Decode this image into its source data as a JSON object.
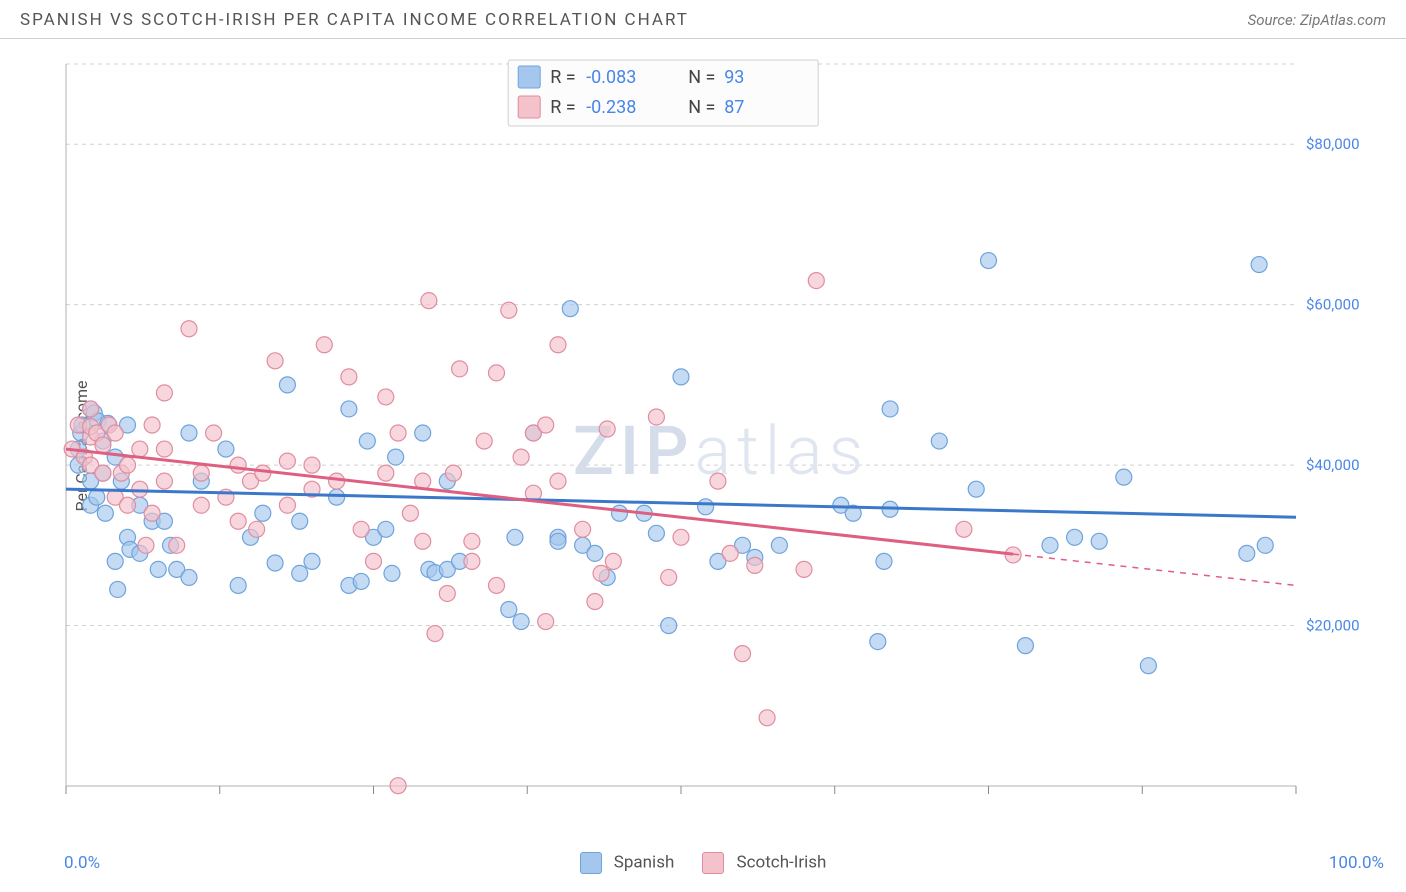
{
  "title": "SPANISH VS SCOTCH-IRISH PER CAPITA INCOME CORRELATION CHART",
  "source": "Source: ZipAtlas.com",
  "watermark": {
    "part1": "ZIP",
    "part2": "atlas"
  },
  "chart": {
    "type": "scatter",
    "ylabel": "Per Capita Income",
    "xlim": [
      0,
      100
    ],
    "ylim": [
      0,
      90000
    ],
    "y_gridlines": [
      20000,
      40000,
      60000,
      80000
    ],
    "y_tick_labels": [
      "$20,000",
      "$40,000",
      "$60,000",
      "$80,000"
    ],
    "x_ticks_minor": [
      0,
      12.5,
      25,
      37.5,
      50,
      62.5,
      75,
      87.5,
      100
    ],
    "x_tick_labels": {
      "left": "0.0%",
      "right": "100.0%"
    },
    "background_color": "#ffffff",
    "grid_color": "#d0d0d0",
    "series": [
      {
        "name": "Spanish",
        "color_fill": "#a5c7ed",
        "color_stroke": "#6fa3dd",
        "r_value": "-0.083",
        "n_value": "93",
        "trend": {
          "x1": 0,
          "y1": 37000,
          "x2": 100,
          "y2": 33500,
          "color": "#3b78c9",
          "width": 3,
          "dash_from_x": null
        },
        "points": [
          [
            1,
            40000
          ],
          [
            1,
            42000
          ],
          [
            1.2,
            44000
          ],
          [
            1.3,
            45000
          ],
          [
            2,
            38000
          ],
          [
            2,
            35000
          ],
          [
            2,
            47000
          ],
          [
            2.3,
            46500
          ],
          [
            2.5,
            36000
          ],
          [
            2.6,
            45500
          ],
          [
            3,
            43000
          ],
          [
            3,
            39000
          ],
          [
            3.2,
            34000
          ],
          [
            3.4,
            45200
          ],
          [
            4,
            41000
          ],
          [
            4,
            28000
          ],
          [
            4.2,
            24500
          ],
          [
            4.5,
            38000
          ],
          [
            5,
            31000
          ],
          [
            5,
            45000
          ],
          [
            5.2,
            29500
          ],
          [
            6,
            29000
          ],
          [
            6,
            35000
          ],
          [
            7,
            33000
          ],
          [
            7.5,
            27000
          ],
          [
            8,
            33000
          ],
          [
            8.5,
            30000
          ],
          [
            9,
            27000
          ],
          [
            10,
            26000
          ],
          [
            10,
            44000
          ],
          [
            11,
            38000
          ],
          [
            13,
            42000
          ],
          [
            14,
            25000
          ],
          [
            15,
            31000
          ],
          [
            16,
            34000
          ],
          [
            17,
            27800
          ],
          [
            18,
            50000
          ],
          [
            19,
            33000
          ],
          [
            19,
            26500
          ],
          [
            20,
            28000
          ],
          [
            22,
            36000
          ],
          [
            23,
            25000
          ],
          [
            23,
            47000
          ],
          [
            24,
            25500
          ],
          [
            24.5,
            43000
          ],
          [
            25,
            31000
          ],
          [
            26,
            32000
          ],
          [
            26.5,
            26500
          ],
          [
            26.8,
            41000
          ],
          [
            29,
            44000
          ],
          [
            29.5,
            27000
          ],
          [
            30,
            26600
          ],
          [
            31,
            27000
          ],
          [
            31,
            38000
          ],
          [
            32,
            28000
          ],
          [
            36,
            22000
          ],
          [
            36.5,
            31000
          ],
          [
            37,
            20500
          ],
          [
            38,
            44000
          ],
          [
            40,
            31000
          ],
          [
            40,
            30500
          ],
          [
            41,
            59500
          ],
          [
            42,
            30000
          ],
          [
            43,
            29000
          ],
          [
            44,
            26000
          ],
          [
            45,
            34000
          ],
          [
            47,
            34000
          ],
          [
            48,
            31500
          ],
          [
            49,
            20000
          ],
          [
            50,
            51000
          ],
          [
            52,
            34800
          ],
          [
            53,
            28000
          ],
          [
            55,
            30000
          ],
          [
            56,
            28500
          ],
          [
            58,
            30000
          ],
          [
            63,
            35000
          ],
          [
            64,
            34000
          ],
          [
            66,
            18000
          ],
          [
            66.5,
            28000
          ],
          [
            67,
            47000
          ],
          [
            67,
            34500
          ],
          [
            71,
            43000
          ],
          [
            74,
            37000
          ],
          [
            75,
            65500
          ],
          [
            78,
            17500
          ],
          [
            80,
            30000
          ],
          [
            82,
            31000
          ],
          [
            84,
            30500
          ],
          [
            86,
            38500
          ],
          [
            88,
            15000
          ],
          [
            96,
            29000
          ],
          [
            97,
            65000
          ],
          [
            97.5,
            30000
          ]
        ]
      },
      {
        "name": "Scotch-Irish",
        "color_fill": "#f3c2cb",
        "color_stroke": "#e08da0",
        "r_value": "-0.238",
        "n_value": "87",
        "trend": {
          "x1": 0,
          "y1": 42000,
          "x2": 100,
          "y2": 25000,
          "color": "#de5f82",
          "width": 3,
          "dash_from_x": 77
        },
        "points": [
          [
            0.5,
            42000
          ],
          [
            1,
            45000
          ],
          [
            1.5,
            41000
          ],
          [
            2,
            40000
          ],
          [
            2,
            43500
          ],
          [
            2,
            44800
          ],
          [
            2,
            47000
          ],
          [
            2.5,
            44000
          ],
          [
            3,
            39000
          ],
          [
            3,
            42500
          ],
          [
            3.5,
            45000
          ],
          [
            4,
            44000
          ],
          [
            4,
            36000
          ],
          [
            4.5,
            39000
          ],
          [
            5,
            40000
          ],
          [
            5,
            35000
          ],
          [
            6,
            37000
          ],
          [
            6,
            42000
          ],
          [
            6.5,
            30000
          ],
          [
            7,
            34000
          ],
          [
            7,
            45000
          ],
          [
            8,
            38000
          ],
          [
            8,
            42000
          ],
          [
            8,
            49000
          ],
          [
            9,
            30000
          ],
          [
            10,
            57000
          ],
          [
            11,
            39000
          ],
          [
            11,
            35000
          ],
          [
            12,
            44000
          ],
          [
            13,
            36000
          ],
          [
            14,
            33000
          ],
          [
            14,
            40000
          ],
          [
            15,
            38000
          ],
          [
            15.5,
            32000
          ],
          [
            16,
            39000
          ],
          [
            17,
            53000
          ],
          [
            18,
            35000
          ],
          [
            18,
            40500
          ],
          [
            20,
            40000
          ],
          [
            20,
            37000
          ],
          [
            21,
            55000
          ],
          [
            22,
            38000
          ],
          [
            23,
            51000
          ],
          [
            24,
            32000
          ],
          [
            25,
            28000
          ],
          [
            26,
            39000
          ],
          [
            26,
            48500
          ],
          [
            27,
            39.5
          ],
          [
            27,
            44000
          ],
          [
            28,
            34000
          ],
          [
            29,
            38000
          ],
          [
            29,
            30500
          ],
          [
            29.5,
            60500
          ],
          [
            30,
            19000
          ],
          [
            31,
            24000
          ],
          [
            31.5,
            39000
          ],
          [
            32,
            52000
          ],
          [
            33,
            28000
          ],
          [
            33,
            30500
          ],
          [
            34,
            43000
          ],
          [
            35,
            25000
          ],
          [
            35,
            51500
          ],
          [
            36,
            59300
          ],
          [
            37,
            41000
          ],
          [
            38,
            44000
          ],
          [
            38,
            36500
          ],
          [
            39,
            20500
          ],
          [
            39,
            45000
          ],
          [
            40,
            38000
          ],
          [
            40,
            55000
          ],
          [
            42,
            32000
          ],
          [
            43,
            23000
          ],
          [
            43.5,
            26500
          ],
          [
            44,
            44500
          ],
          [
            44.5,
            28000
          ],
          [
            48,
            46000
          ],
          [
            49,
            26000
          ],
          [
            50,
            31000
          ],
          [
            53,
            38000
          ],
          [
            54,
            29000
          ],
          [
            55,
            16500
          ],
          [
            56,
            27500
          ],
          [
            57,
            8500
          ],
          [
            60,
            27000
          ],
          [
            61,
            63000
          ],
          [
            73,
            32000
          ],
          [
            77,
            28800
          ]
        ]
      }
    ]
  },
  "legend": {
    "items": [
      {
        "label": "Spanish",
        "fill": "#a5c7ed",
        "stroke": "#6fa3dd"
      },
      {
        "label": "Scotch-Irish",
        "fill": "#f3c2cb",
        "stroke": "#e08da0"
      }
    ]
  },
  "statbox": {
    "rows": [
      {
        "swatch_fill": "#a5c7ed",
        "swatch_stroke": "#6fa3dd",
        "r_label": "R =",
        "r_val": "-0.083",
        "n_label": "N =",
        "n_val": "93"
      },
      {
        "swatch_fill": "#f3c2cb",
        "swatch_stroke": "#e08da0",
        "r_label": "R =",
        "r_val": "-0.238",
        "n_label": "N =",
        "n_val": "87"
      }
    ]
  }
}
